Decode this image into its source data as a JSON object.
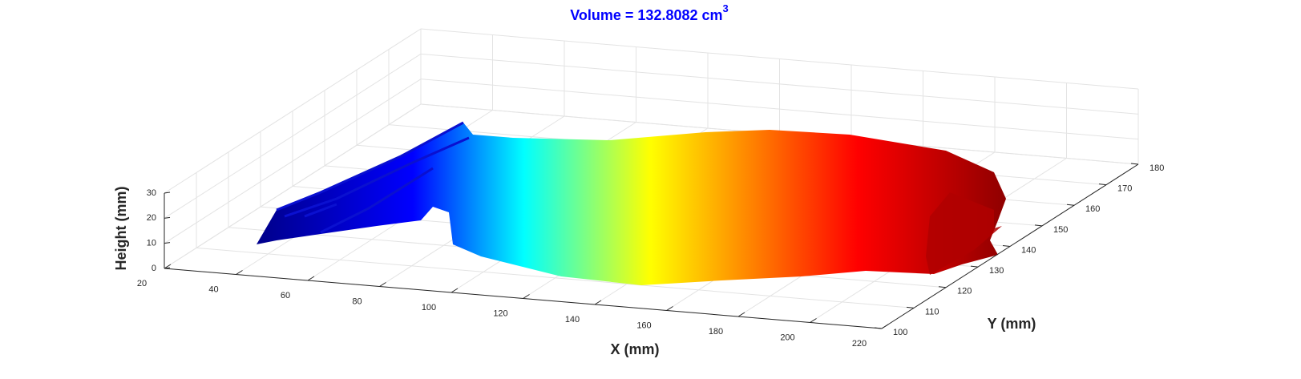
{
  "chart_data": {
    "type": "surface3d",
    "title": "Volume = 132.8082 cm",
    "title_superscript": "3",
    "xlabel": "X (mm)",
    "ylabel": "Y (mm)",
    "zlabel": "Height (mm)",
    "xlim": [
      20,
      220
    ],
    "xticks": [
      20,
      40,
      60,
      80,
      100,
      120,
      140,
      160,
      180,
      200,
      220
    ],
    "ylim": [
      100,
      180
    ],
    "yticks": [
      100,
      110,
      120,
      130,
      140,
      150,
      160,
      170,
      180
    ],
    "zlim": [
      0,
      30
    ],
    "zticks": [
      0,
      10,
      20,
      30
    ],
    "grid": true
  }
}
